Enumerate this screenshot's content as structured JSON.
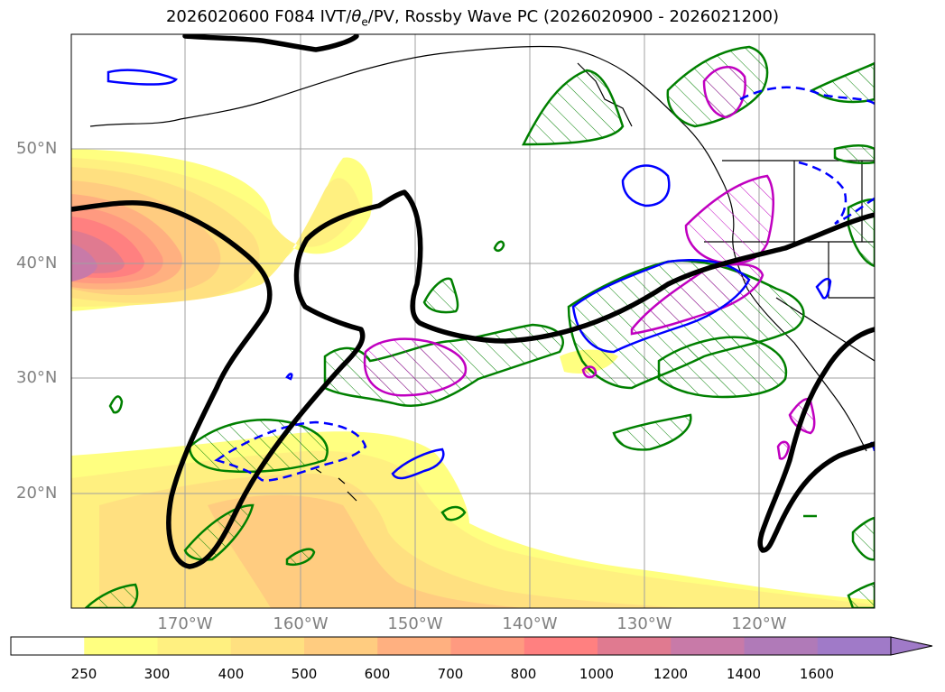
{
  "title_prefix": "2026020600 F084 IVT/",
  "title_theta": "θ",
  "title_theta_sub": "e",
  "title_suffix": "/PV, Rossby Wave PC (2026020900 - 2026021200)",
  "lat_labels": [
    "50°N",
    "40°N",
    "30°N",
    "20°N"
  ],
  "lon_labels": [
    "170°W",
    "160°W",
    "150°W",
    "140°W",
    "130°W",
    "120°W"
  ],
  "colorbar": {
    "levels": [
      "250",
      "300",
      "400",
      "500",
      "600",
      "700",
      "800",
      "1000",
      "1200",
      "1400",
      "1600"
    ],
    "colors": [
      "#ffffff",
      "#ffff80",
      "#fff080",
      "#ffe080",
      "#ffcc80",
      "#ffb080",
      "#ff9a80",
      "#ff8080",
      "#e07a90",
      "#c87aa8",
      "#b07ab8",
      "#a07ac8"
    ]
  },
  "colors": {
    "ridge_line": "#000000",
    "green_contour": "#008000",
    "blue_contour": "#0000ff",
    "magenta_contour": "#c000c0"
  }
}
